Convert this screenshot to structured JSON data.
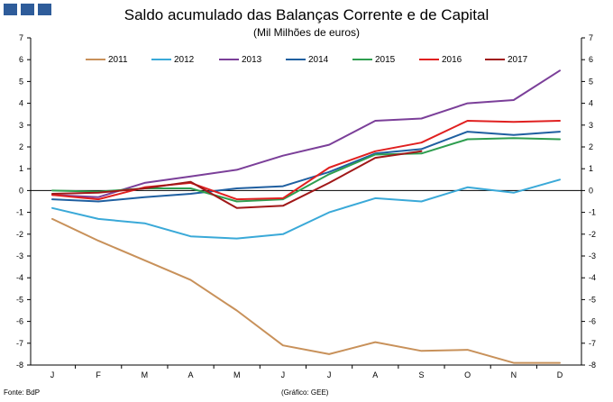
{
  "chart_data": {
    "type": "line",
    "title": "Saldo acumulado das Balanças Corrente e de Capital",
    "subtitle": "(Mil Milhões de euros)",
    "categories": [
      "J",
      "F",
      "M",
      "A",
      "M",
      "J",
      "J",
      "A",
      "S",
      "O",
      "N",
      "D"
    ],
    "ylim": [
      -8,
      7
    ],
    "yticks": [
      7,
      6,
      5,
      4,
      3,
      2,
      1,
      0,
      -1,
      -2,
      -3,
      -4,
      -5,
      -6,
      -7,
      -8
    ],
    "grid": false,
    "legend": "top",
    "series": [
      {
        "name": "2011",
        "color": "#c8915a",
        "values": [
          -1.3,
          -2.3,
          -3.2,
          -4.1,
          -5.5,
          -7.1,
          -7.5,
          -6.95,
          -7.35,
          -7.3,
          -7.9,
          -7.9
        ]
      },
      {
        "name": "2012",
        "color": "#3aa9d8",
        "values": [
          -0.8,
          -1.3,
          -1.5,
          -2.1,
          -2.2,
          -2.0,
          -1.0,
          -0.35,
          -0.5,
          0.15,
          -0.1,
          0.5
        ]
      },
      {
        "name": "2013",
        "color": "#7b3f99",
        "values": [
          -0.2,
          -0.3,
          0.35,
          0.65,
          0.95,
          1.6,
          2.1,
          3.2,
          3.3,
          4.0,
          4.15,
          5.5
        ]
      },
      {
        "name": "2014",
        "color": "#1f5fa0",
        "values": [
          -0.4,
          -0.5,
          -0.3,
          -0.15,
          0.1,
          0.2,
          0.85,
          1.7,
          1.9,
          2.7,
          2.55,
          2.7
        ]
      },
      {
        "name": "2015",
        "color": "#2e9e4f",
        "values": [
          0.0,
          -0.05,
          0.1,
          0.1,
          -0.5,
          -0.4,
          0.75,
          1.65,
          1.7,
          2.35,
          2.4,
          2.35
        ]
      },
      {
        "name": "2016",
        "color": "#e02020",
        "values": [
          -0.2,
          -0.4,
          0.15,
          0.35,
          -0.4,
          -0.35,
          1.05,
          1.8,
          2.2,
          3.2,
          3.15,
          3.2
        ]
      },
      {
        "name": "2017",
        "color": "#a01818",
        "values": [
          -0.15,
          -0.1,
          0.1,
          0.4,
          -0.8,
          -0.7,
          0.35,
          1.5,
          1.8,
          null,
          null,
          null
        ]
      }
    ]
  },
  "footer": {
    "source": "Fonte: BdP",
    "credit": "(Gráfico: GEE)"
  }
}
